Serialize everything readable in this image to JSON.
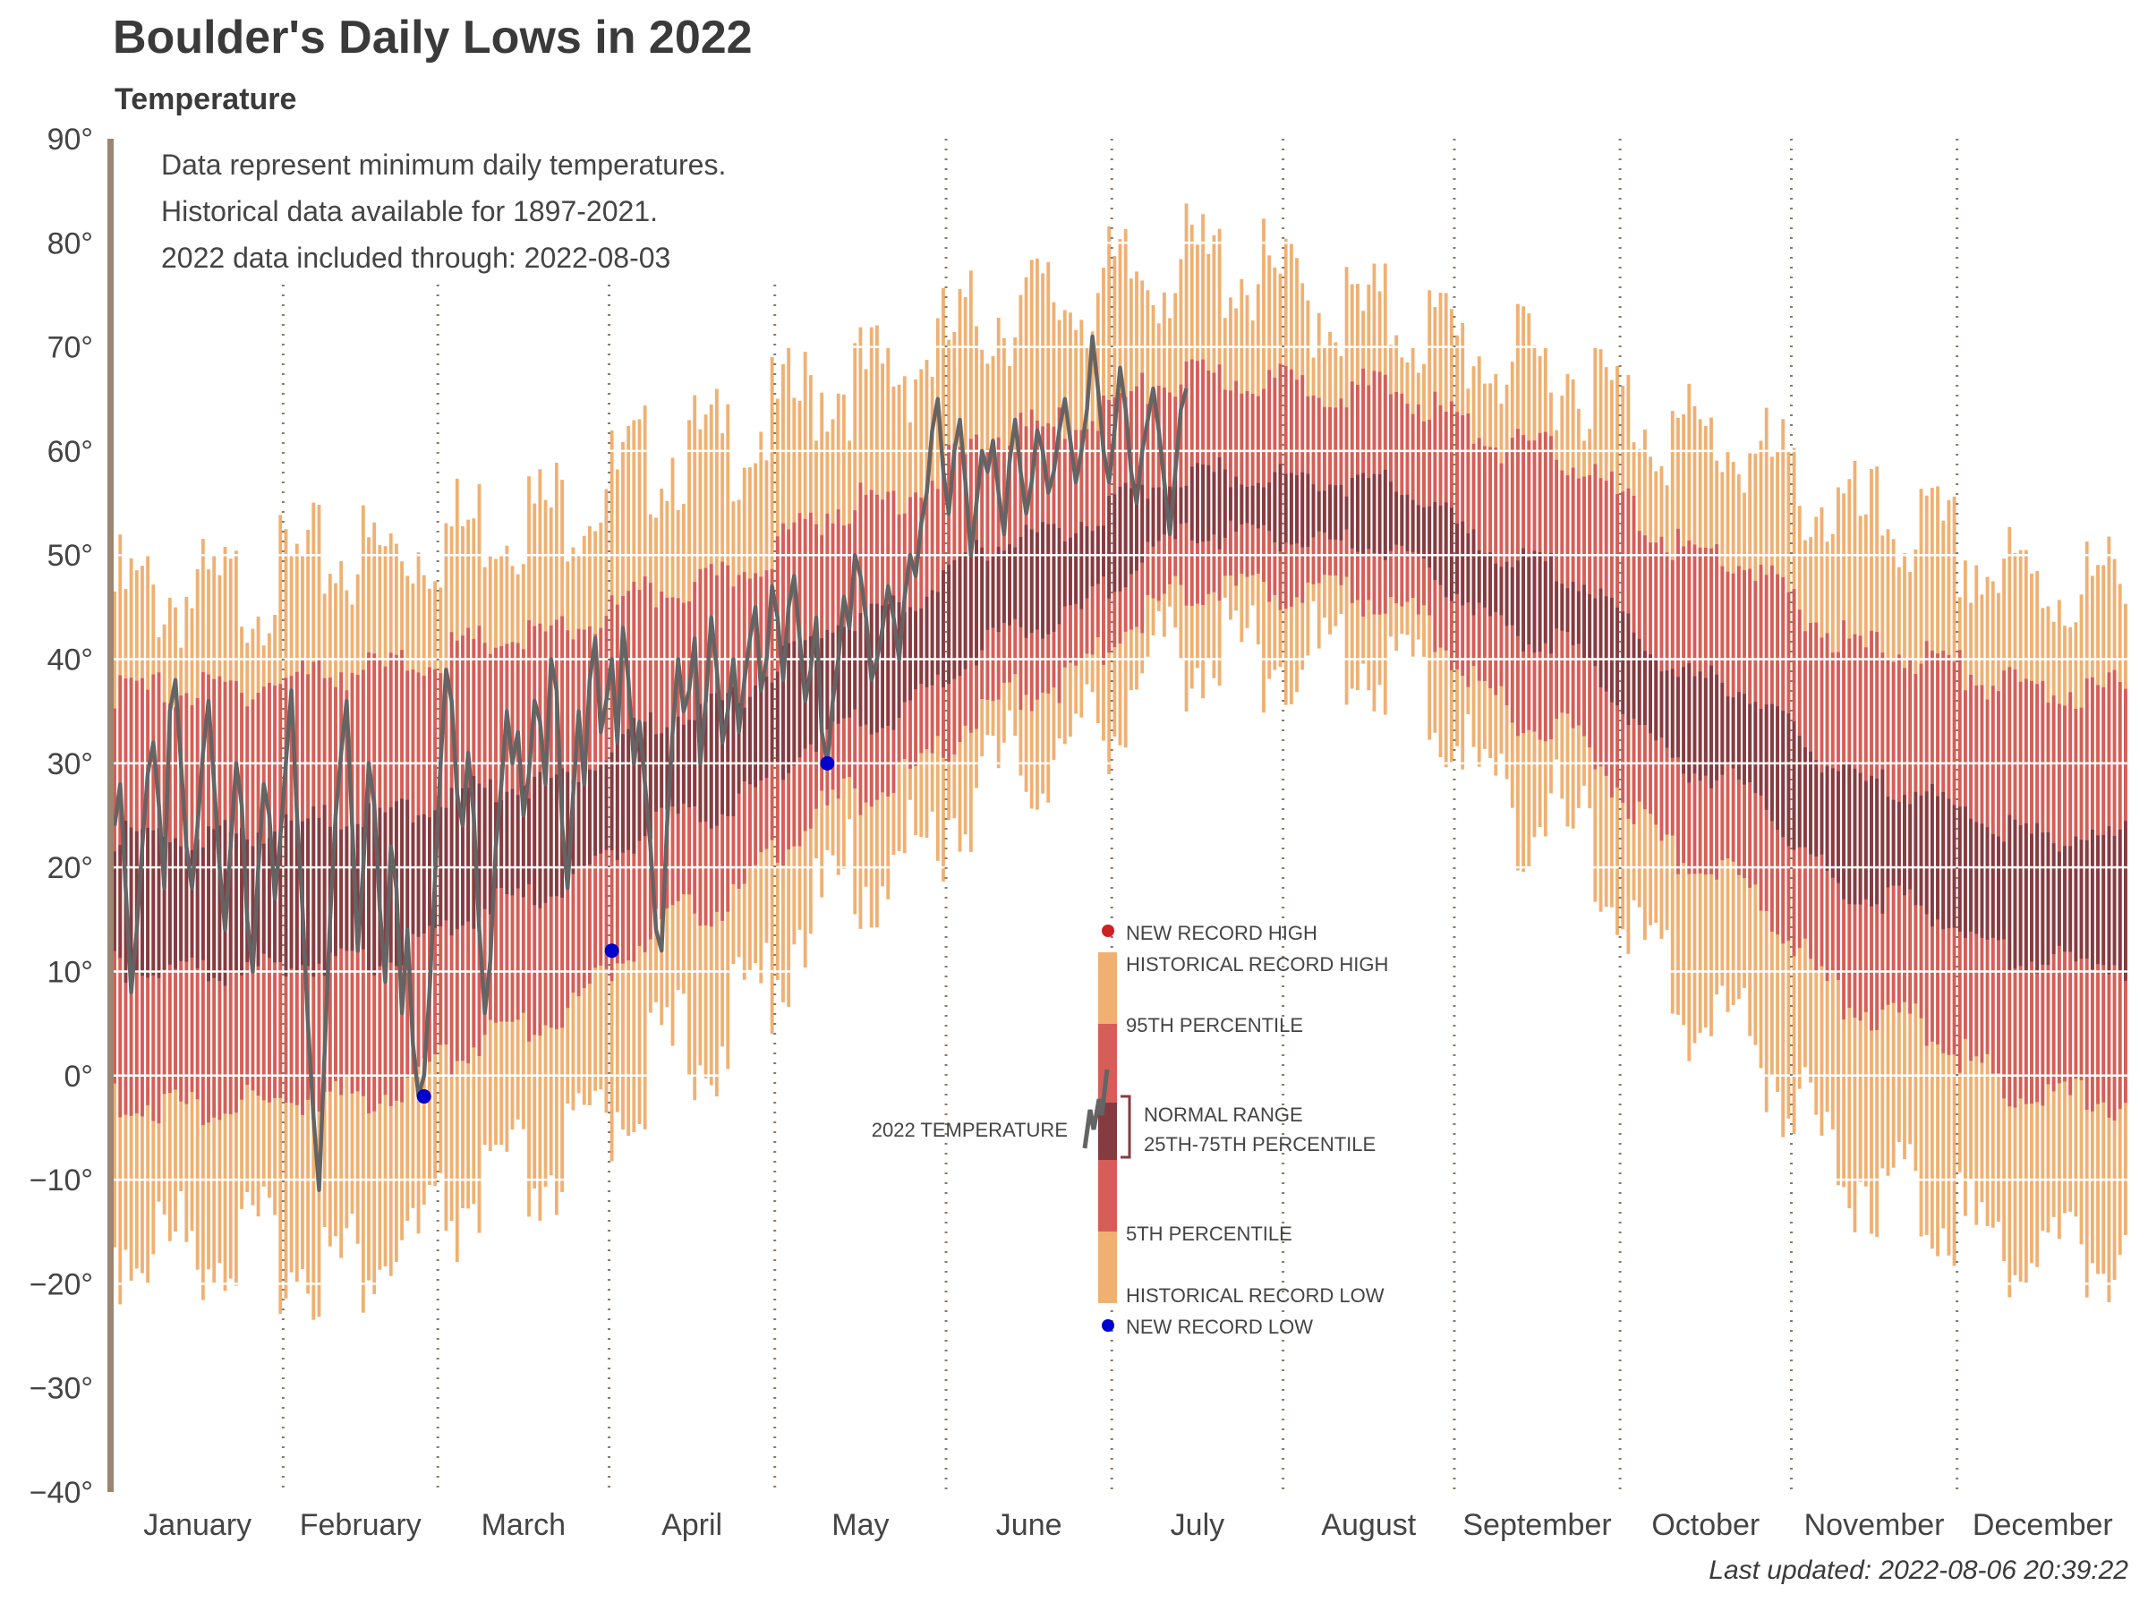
{
  "title": "Boulder's Daily Lows in 2022",
  "subtitle": "Temperature",
  "notes": [
    "Data represent minimum daily temperatures.",
    "Historical data available for 1897-2021.",
    "2022 data included through: 2022-08-03"
  ],
  "last_updated": "Last updated: 2022-08-06 20:39:22",
  "legend": {
    "new_record_high": "NEW RECORD HIGH",
    "historical_record_high": "HISTORICAL RECORD HIGH",
    "p95": "95TH PERCENTILE",
    "normal_range": "NORMAL RANGE",
    "p25_75": "25TH-75TH PERCENTILE",
    "p5": "5TH PERCENTILE",
    "historical_record_low": "HISTORICAL RECORD LOW",
    "new_record_low": "NEW RECORD LOW",
    "temp_2022": "2022 TEMPERATURE"
  },
  "colors": {
    "record_band": "#f0b072",
    "percentile_band": "#d55e58",
    "normal_band": "#843c42",
    "line_2022": "#646464",
    "new_record_low": "#0000cc",
    "new_record_high": "#cc2222",
    "axis": "#9b8670",
    "month_divider": "#8a7a66"
  },
  "chart_data": {
    "type": "area",
    "x_axis": "day of year 2022",
    "ylim": [
      -40,
      90
    ],
    "y_ticks": [
      -40,
      -30,
      -20,
      -10,
      0,
      10,
      20,
      30,
      40,
      50,
      60,
      70,
      80,
      90
    ],
    "y_tick_labels": [
      "−40°",
      "−30°",
      "−20°",
      "−10°",
      "0°",
      "10°",
      "20°",
      "30°",
      "40°",
      "50°",
      "60°",
      "70°",
      "80°",
      "90°"
    ],
    "months": [
      "January",
      "February",
      "March",
      "April",
      "May",
      "June",
      "July",
      "August",
      "September",
      "October",
      "November",
      "December"
    ],
    "grid": true,
    "bands_by_month_midpoint": {
      "record_high": [
        46,
        50,
        54,
        60,
        67,
        74,
        78,
        73,
        68,
        61,
        53,
        47
      ],
      "p95": [
        37,
        39,
        42,
        47,
        55,
        62,
        67,
        66,
        60,
        50,
        41,
        37
      ],
      "p75": [
        23,
        25,
        28,
        35,
        44,
        52,
        58,
        57,
        49,
        38,
        28,
        23
      ],
      "p25": [
        10,
        11,
        17,
        25,
        34,
        43,
        52,
        51,
        42,
        29,
        17,
        11
      ],
      "p5": [
        -3,
        -2,
        5,
        16,
        27,
        37,
        47,
        46,
        34,
        20,
        6,
        -2
      ],
      "record_low": [
        -16,
        -18,
        -10,
        3,
        19,
        30,
        41,
        40,
        25,
        6,
        -10,
        -17
      ]
    },
    "series_2022_daily_low": {
      "through": "2022-08-03",
      "values": [
        24,
        28,
        18,
        8,
        14,
        22,
        29,
        32,
        26,
        18,
        35,
        38,
        30,
        22,
        18,
        24,
        31,
        36,
        28,
        20,
        14,
        22,
        30,
        26,
        15,
        10,
        20,
        28,
        25,
        17,
        23,
        30,
        37,
        25,
        16,
        5,
        -4,
        -11,
        2,
        15,
        25,
        31,
        36,
        24,
        12,
        20,
        30,
        26,
        16,
        9,
        22,
        18,
        6,
        14,
        3,
        -2,
        0,
        8,
        19,
        30,
        39,
        36,
        27,
        24,
        31,
        25,
        14,
        6,
        11,
        22,
        28,
        35,
        30,
        33,
        25,
        29,
        36,
        34,
        28,
        40,
        37,
        24,
        18,
        27,
        35,
        28,
        38,
        42,
        33,
        36,
        40,
        32,
        43,
        38,
        30,
        34,
        28,
        22,
        14,
        12,
        24,
        33,
        40,
        35,
        37,
        42,
        30,
        36,
        44,
        39,
        32,
        35,
        40,
        33,
        38,
        42,
        45,
        37,
        40,
        47,
        44,
        38,
        45,
        48,
        42,
        36,
        39,
        44,
        33,
        30,
        36,
        40,
        46,
        43,
        50,
        48,
        44,
        38,
        40,
        43,
        47,
        44,
        40,
        46,
        50,
        48,
        53,
        56,
        62,
        65,
        58,
        54,
        60,
        63,
        57,
        50,
        55,
        60,
        58,
        61,
        56,
        52,
        59,
        63,
        58,
        54,
        57,
        62,
        60,
        56,
        58,
        62,
        65,
        61,
        57,
        60,
        64,
        71,
        66,
        60,
        57,
        62,
        68,
        64,
        58,
        55,
        60,
        63,
        66,
        62,
        57,
        52,
        58,
        64,
        66
      ],
      "new_record_lows": [
        {
          "date": "Feb 26",
          "value": -2
        },
        {
          "date": "Apr 1",
          "value": 12
        },
        {
          "date": "May 10",
          "value": 30
        }
      ]
    }
  }
}
